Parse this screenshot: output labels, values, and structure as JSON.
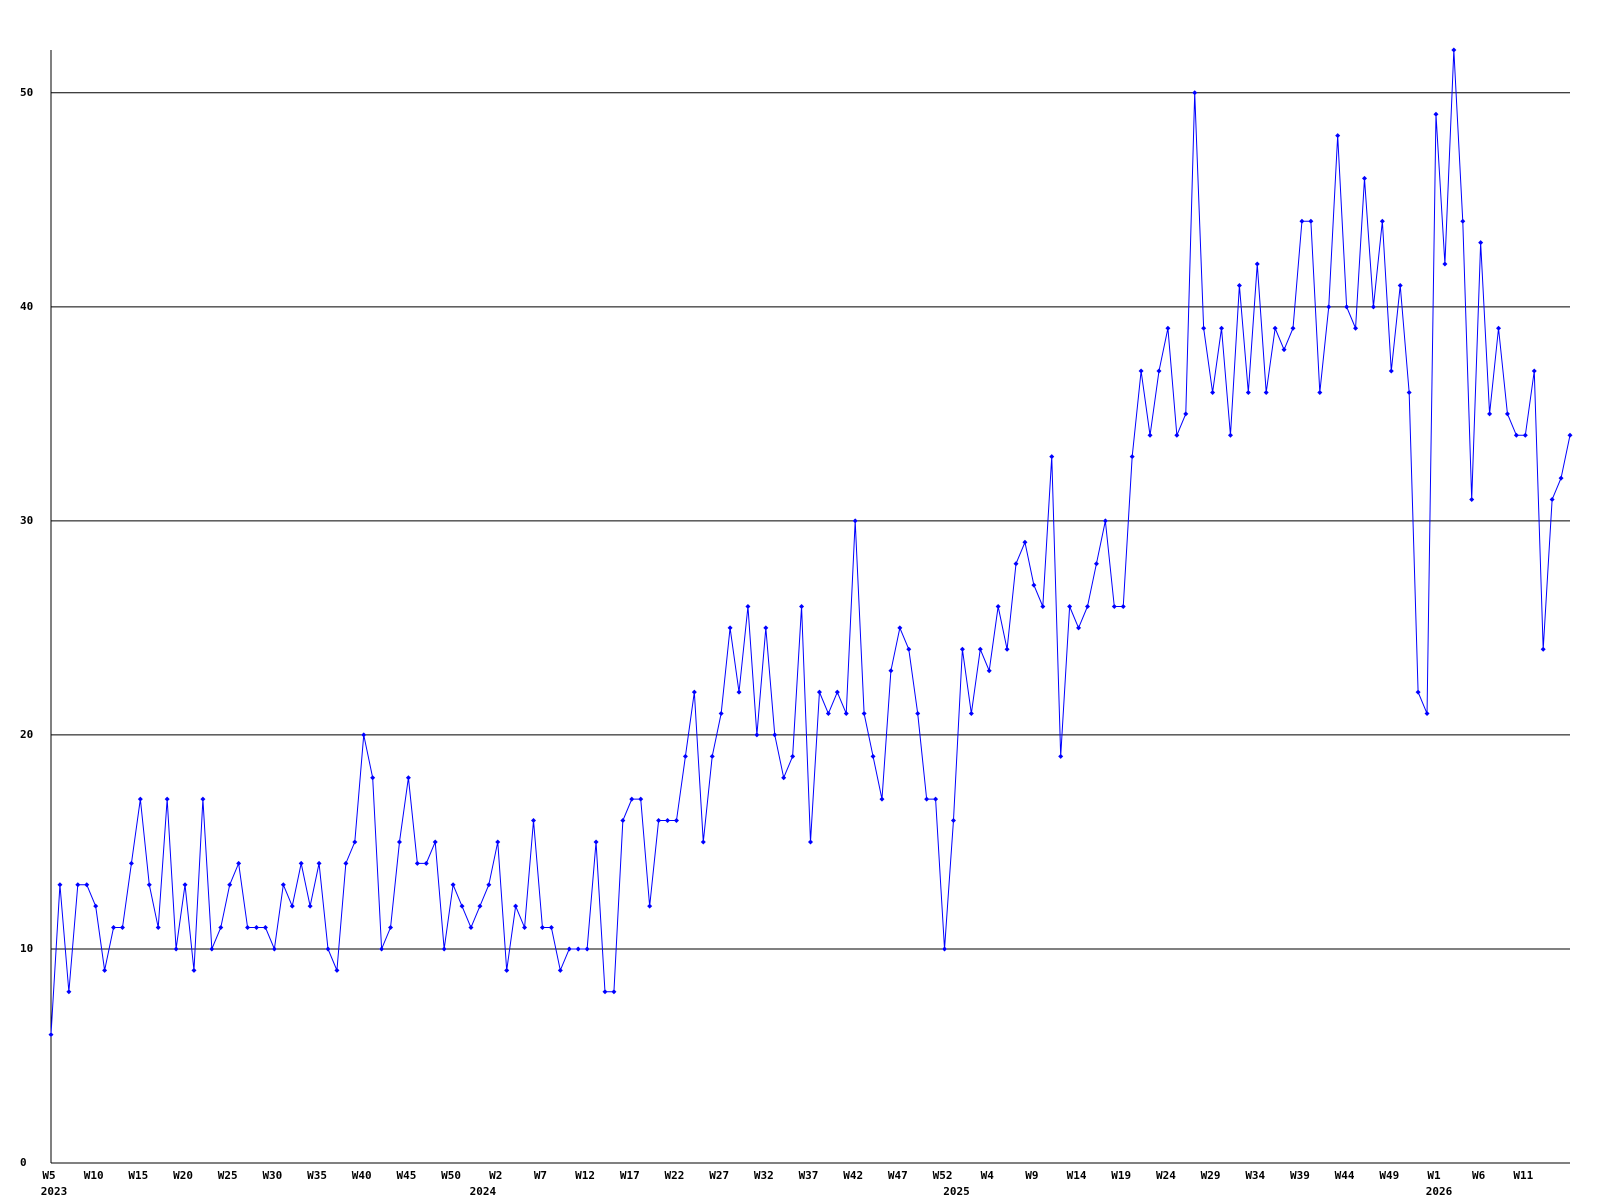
{
  "chart_data": {
    "type": "line",
    "categories": [
      "W5",
      null,
      null,
      null,
      null,
      "W10",
      null,
      null,
      null,
      null,
      "W15",
      null,
      null,
      null,
      null,
      "W20",
      null,
      null,
      null,
      null,
      "W25",
      null,
      null,
      null,
      null,
      "W30",
      null,
      null,
      null,
      null,
      "W35",
      null,
      null,
      null,
      null,
      "W40",
      null,
      null,
      null,
      null,
      "W45",
      null,
      null,
      null,
      null,
      "W50",
      null,
      null,
      null,
      null,
      "W2",
      null,
      null,
      null,
      null,
      "W7",
      null,
      null,
      null,
      null,
      "W12",
      null,
      null,
      null,
      null,
      "W17",
      null,
      null,
      null,
      null,
      "W22",
      null,
      null,
      null,
      null,
      "W27",
      null,
      null,
      null,
      null,
      "W32",
      null,
      null,
      null,
      null,
      "W37",
      null,
      null,
      null,
      null,
      "W42",
      null,
      null,
      null,
      null,
      "W47",
      null,
      null,
      null,
      null,
      "W52",
      null,
      null,
      null,
      null,
      "W4",
      null,
      null,
      null,
      null,
      "W9",
      null,
      null,
      null,
      null,
      "W14",
      null,
      null,
      null,
      null,
      "W19",
      null,
      null,
      null,
      null,
      "W24",
      null,
      null,
      null,
      null,
      "W29",
      null,
      null,
      null,
      null,
      "W34",
      null,
      null,
      null,
      null,
      "W39",
      null,
      null,
      null,
      null,
      "W44",
      null,
      null,
      null,
      null,
      "W49",
      null,
      null,
      null,
      null,
      "W1",
      null,
      null,
      null,
      null,
      "W6",
      null,
      null,
      null,
      null,
      "W11",
      null,
      null,
      null,
      null,
      null
    ],
    "category_years": [
      "2023",
      null,
      null,
      null,
      null,
      null,
      null,
      null,
      null,
      null,
      null,
      null,
      null,
      null,
      null,
      null,
      null,
      null,
      null,
      null,
      null,
      null,
      null,
      null,
      null,
      null,
      null,
      null,
      null,
      null,
      null,
      null,
      null,
      null,
      null,
      null,
      null,
      null,
      null,
      null,
      null,
      null,
      null,
      null,
      null,
      null,
      null,
      null,
      "2024",
      null,
      null,
      null,
      null,
      null,
      null,
      null,
      null,
      null,
      null,
      null,
      null,
      null,
      null,
      null,
      null,
      null,
      null,
      null,
      null,
      null,
      null,
      null,
      null,
      null,
      null,
      null,
      null,
      null,
      null,
      null,
      null,
      null,
      null,
      null,
      null,
      null,
      null,
      null,
      null,
      null,
      null,
      null,
      null,
      null,
      null,
      null,
      null,
      null,
      null,
      null,
      null,
      "2025",
      null,
      null,
      null,
      null,
      null,
      null,
      null,
      null,
      null,
      null,
      null,
      null,
      null,
      null,
      null,
      null,
      null,
      null,
      null,
      null,
      null,
      null,
      null,
      null,
      null,
      null,
      null,
      null,
      null,
      null,
      null,
      null,
      null,
      null,
      null,
      null,
      null,
      null,
      null,
      null,
      null,
      null,
      null,
      null,
      null,
      null,
      null,
      null,
      null,
      null,
      null,
      null,
      null,
      "2026",
      null,
      null,
      null,
      null,
      null,
      null,
      null,
      null,
      null,
      null,
      null,
      null,
      null,
      null,
      null
    ],
    "values": [
      6,
      13,
      8,
      13,
      13,
      12,
      9,
      11,
      11,
      14,
      17,
      13,
      11,
      17,
      10,
      13,
      9,
      17,
      10,
      11,
      13,
      14,
      11,
      11,
      11,
      10,
      13,
      12,
      14,
      12,
      14,
      10,
      9,
      14,
      15,
      20,
      18,
      10,
      11,
      15,
      18,
      14,
      14,
      15,
      10,
      13,
      12,
      11,
      12,
      13,
      15,
      9,
      12,
      11,
      16,
      11,
      11,
      9,
      10,
      10,
      10,
      15,
      8,
      8,
      16,
      17,
      17,
      12,
      16,
      16,
      16,
      19,
      22,
      15,
      19,
      21,
      25,
      22,
      26,
      20,
      25,
      20,
      18,
      19,
      26,
      15,
      22,
      21,
      22,
      21,
      30,
      21,
      19,
      17,
      23,
      25,
      24,
      21,
      17,
      17,
      10,
      16,
      24,
      21,
      24,
      23,
      26,
      24,
      28,
      29,
      27,
      26,
      33,
      19,
      26,
      25,
      26,
      28,
      30,
      26,
      26,
      33,
      37,
      34,
      37,
      39,
      34,
      35,
      50,
      39,
      36,
      39,
      34,
      41,
      36,
      42,
      36,
      39,
      38,
      39,
      44,
      44,
      36,
      40,
      48,
      40,
      39,
      46,
      40,
      44,
      37,
      41,
      36,
      22,
      21,
      49,
      42,
      52,
      44,
      31,
      43,
      35,
      39,
      35,
      34,
      34,
      37,
      24,
      31,
      32,
      34
    ],
    "color": "#0000ff",
    "ylim": [
      0,
      52
    ],
    "yticks": [
      0,
      10,
      20,
      30,
      40,
      50
    ],
    "grid": true
  }
}
